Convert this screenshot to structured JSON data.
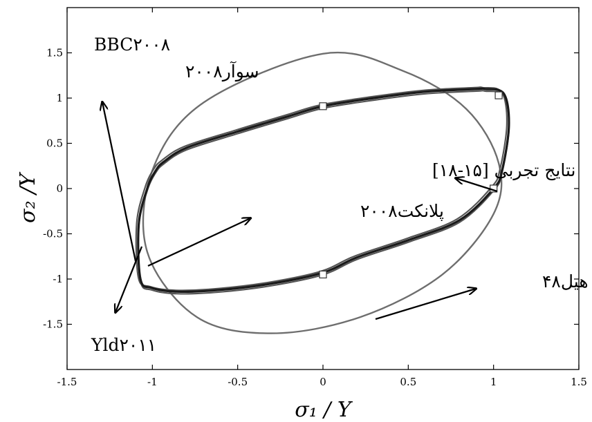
{
  "chart_data": {
    "type": "line",
    "xlabel": "σ₁  /  Y",
    "ylabel": "σ₂ /Y",
    "xlim": [
      -1.5,
      1.5
    ],
    "ylim": [
      -2,
      2
    ],
    "xticks": [
      -1.5,
      -1,
      -0.5,
      0,
      0.5,
      1,
      1.5
    ],
    "xtick_labels": [
      "-1.5",
      "-1",
      "-0.5",
      "0",
      "0.5",
      "1",
      "1.5"
    ],
    "yticks": [
      -1.5,
      -1,
      -0.5,
      0,
      0.5,
      1,
      1.5
    ],
    "ytick_labels": [
      "-1.5",
      "-1",
      "-0.5",
      "0",
      "0.5",
      "1",
      "1.5"
    ],
    "grid": false,
    "annotations": [
      {
        "text": "BBC۲۰۰۸"
      },
      {
        "text": "سوآر۲۰۰۸"
      },
      {
        "text": "نتایج تجربی [۱۵-۱۸]"
      },
      {
        "text": "پلانکت۲۰۰۸"
      },
      {
        "text": "هیل۴۸"
      },
      {
        "text": "Yld۲۰۱۱"
      }
    ],
    "series": [
      {
        "style": "ellipse",
        "color": "#6e6e6e",
        "x": [
          0.0,
          0.47,
          0.84,
          1.03,
          1.0,
          0.7,
          0.22,
          -0.3,
          -0.74,
          -1.03,
          -1.0,
          -0.7
        ],
        "y": [
          1.49,
          1.3,
          0.88,
          0.28,
          -0.28,
          -0.95,
          -1.42,
          -1.6,
          -1.42,
          -0.7,
          0.2,
          0.95
        ]
      },
      {
        "style": "yield-locus",
        "color": "#1a1a1a",
        "x": [
          0.95,
          1.06,
          1.09,
          1.05,
          1.0,
          0.8,
          0.5,
          0.2,
          0.0,
          -0.3,
          -0.6,
          -0.85,
          -1.0,
          -1.07,
          -1.08,
          -1.03,
          -0.98,
          -0.93,
          -0.8,
          -0.5,
          -0.2,
          0.0,
          0.3,
          0.6,
          0.9
        ],
        "y": [
          1.1,
          1.05,
          0.7,
          0.2,
          0.0,
          -0.35,
          -0.57,
          -0.76,
          -0.93,
          -1.05,
          -1.12,
          -1.14,
          -1.1,
          -1.0,
          -0.4,
          0.0,
          0.2,
          0.3,
          0.45,
          0.63,
          0.8,
          0.91,
          1.0,
          1.07,
          1.1
        ]
      },
      {
        "style": "experimental",
        "marker": "square",
        "x": [
          0.0,
          1.03,
          1.0,
          0.0
        ],
        "y": [
          0.91,
          1.03,
          0.0,
          -0.95
        ]
      }
    ]
  }
}
